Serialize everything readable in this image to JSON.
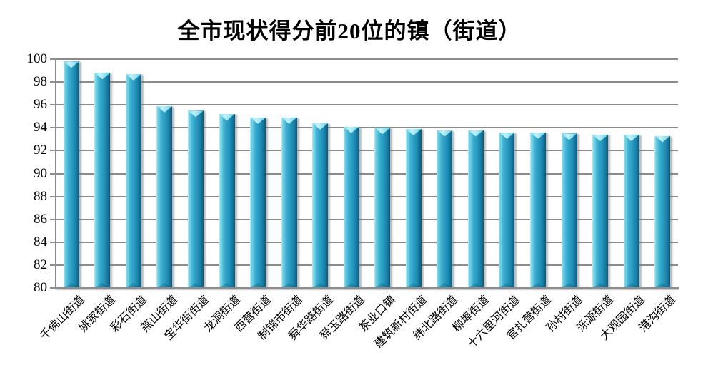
{
  "chart_data": {
    "type": "bar",
    "title": "全市现状得分前20位的镇（街道）",
    "categories": [
      "千佛山街道",
      "姚家街道",
      "彩石街道",
      "燕山街道",
      "宝华街街道",
      "龙洞街道",
      "西营街道",
      "制锦市街道",
      "舜华路街道",
      "舜玉路街道",
      "茶业口镇",
      "建筑新村街道",
      "纬北路街道",
      "柳埠街道",
      "十六里河街道",
      "官扎营街道",
      "孙村街道",
      "泺源街道",
      "大观园街道",
      "港沟街道"
    ],
    "values": [
      99.8,
      98.8,
      98.7,
      95.9,
      95.5,
      95.2,
      94.9,
      94.9,
      94.4,
      94.1,
      94.0,
      93.9,
      93.8,
      93.8,
      93.6,
      93.6,
      93.5,
      93.4,
      93.4,
      93.3
    ],
    "xlabel": "",
    "ylabel": "",
    "ylim": [
      80,
      100
    ],
    "ytick_step": 2,
    "ytick_labels": [
      "80",
      "82",
      "84",
      "86",
      "88",
      "90",
      "92",
      "94",
      "96",
      "98",
      "100"
    ],
    "grid": "horizontal-major",
    "legend": "none",
    "colors": {
      "bar_mid": "#35A8CC",
      "bar_light": "#8FDFEF",
      "bar_dark": "#0D5877",
      "gridline": "#8C8C8C",
      "text": "#000000",
      "background": "#FFFFFF"
    }
  }
}
